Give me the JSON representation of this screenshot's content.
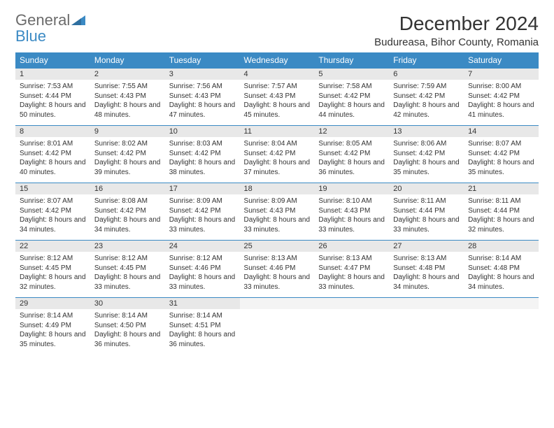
{
  "logo": {
    "word1": "General",
    "word2": "Blue"
  },
  "title": "December 2024",
  "location": "Budureasa, Bihor County, Romania",
  "colors": {
    "header_bg": "#3b8ac4",
    "header_text": "#ffffff",
    "daynum_bg": "#e8e8e8",
    "daynum_border": "#3b8ac4",
    "text": "#333333",
    "logo_gray": "#6b6b6b",
    "logo_blue": "#3b8ac4"
  },
  "weekdays": [
    "Sunday",
    "Monday",
    "Tuesday",
    "Wednesday",
    "Thursday",
    "Friday",
    "Saturday"
  ],
  "weeks": [
    [
      {
        "num": "1",
        "sunrise": "7:53 AM",
        "sunset": "4:44 PM",
        "daylight": "8 hours and 50 minutes."
      },
      {
        "num": "2",
        "sunrise": "7:55 AM",
        "sunset": "4:43 PM",
        "daylight": "8 hours and 48 minutes."
      },
      {
        "num": "3",
        "sunrise": "7:56 AM",
        "sunset": "4:43 PM",
        "daylight": "8 hours and 47 minutes."
      },
      {
        "num": "4",
        "sunrise": "7:57 AM",
        "sunset": "4:43 PM",
        "daylight": "8 hours and 45 minutes."
      },
      {
        "num": "5",
        "sunrise": "7:58 AM",
        "sunset": "4:42 PM",
        "daylight": "8 hours and 44 minutes."
      },
      {
        "num": "6",
        "sunrise": "7:59 AM",
        "sunset": "4:42 PM",
        "daylight": "8 hours and 42 minutes."
      },
      {
        "num": "7",
        "sunrise": "8:00 AM",
        "sunset": "4:42 PM",
        "daylight": "8 hours and 41 minutes."
      }
    ],
    [
      {
        "num": "8",
        "sunrise": "8:01 AM",
        "sunset": "4:42 PM",
        "daylight": "8 hours and 40 minutes."
      },
      {
        "num": "9",
        "sunrise": "8:02 AM",
        "sunset": "4:42 PM",
        "daylight": "8 hours and 39 minutes."
      },
      {
        "num": "10",
        "sunrise": "8:03 AM",
        "sunset": "4:42 PM",
        "daylight": "8 hours and 38 minutes."
      },
      {
        "num": "11",
        "sunrise": "8:04 AM",
        "sunset": "4:42 PM",
        "daylight": "8 hours and 37 minutes."
      },
      {
        "num": "12",
        "sunrise": "8:05 AM",
        "sunset": "4:42 PM",
        "daylight": "8 hours and 36 minutes."
      },
      {
        "num": "13",
        "sunrise": "8:06 AM",
        "sunset": "4:42 PM",
        "daylight": "8 hours and 35 minutes."
      },
      {
        "num": "14",
        "sunrise": "8:07 AM",
        "sunset": "4:42 PM",
        "daylight": "8 hours and 35 minutes."
      }
    ],
    [
      {
        "num": "15",
        "sunrise": "8:07 AM",
        "sunset": "4:42 PM",
        "daylight": "8 hours and 34 minutes."
      },
      {
        "num": "16",
        "sunrise": "8:08 AM",
        "sunset": "4:42 PM",
        "daylight": "8 hours and 34 minutes."
      },
      {
        "num": "17",
        "sunrise": "8:09 AM",
        "sunset": "4:42 PM",
        "daylight": "8 hours and 33 minutes."
      },
      {
        "num": "18",
        "sunrise": "8:09 AM",
        "sunset": "4:43 PM",
        "daylight": "8 hours and 33 minutes."
      },
      {
        "num": "19",
        "sunrise": "8:10 AM",
        "sunset": "4:43 PM",
        "daylight": "8 hours and 33 minutes."
      },
      {
        "num": "20",
        "sunrise": "8:11 AM",
        "sunset": "4:44 PM",
        "daylight": "8 hours and 33 minutes."
      },
      {
        "num": "21",
        "sunrise": "8:11 AM",
        "sunset": "4:44 PM",
        "daylight": "8 hours and 32 minutes."
      }
    ],
    [
      {
        "num": "22",
        "sunrise": "8:12 AM",
        "sunset": "4:45 PM",
        "daylight": "8 hours and 32 minutes."
      },
      {
        "num": "23",
        "sunrise": "8:12 AM",
        "sunset": "4:45 PM",
        "daylight": "8 hours and 33 minutes."
      },
      {
        "num": "24",
        "sunrise": "8:12 AM",
        "sunset": "4:46 PM",
        "daylight": "8 hours and 33 minutes."
      },
      {
        "num": "25",
        "sunrise": "8:13 AM",
        "sunset": "4:46 PM",
        "daylight": "8 hours and 33 minutes."
      },
      {
        "num": "26",
        "sunrise": "8:13 AM",
        "sunset": "4:47 PM",
        "daylight": "8 hours and 33 minutes."
      },
      {
        "num": "27",
        "sunrise": "8:13 AM",
        "sunset": "4:48 PM",
        "daylight": "8 hours and 34 minutes."
      },
      {
        "num": "28",
        "sunrise": "8:14 AM",
        "sunset": "4:48 PM",
        "daylight": "8 hours and 34 minutes."
      }
    ],
    [
      {
        "num": "29",
        "sunrise": "8:14 AM",
        "sunset": "4:49 PM",
        "daylight": "8 hours and 35 minutes."
      },
      {
        "num": "30",
        "sunrise": "8:14 AM",
        "sunset": "4:50 PM",
        "daylight": "8 hours and 36 minutes."
      },
      {
        "num": "31",
        "sunrise": "8:14 AM",
        "sunset": "4:51 PM",
        "daylight": "8 hours and 36 minutes."
      },
      {
        "num": "",
        "empty": true
      },
      {
        "num": "",
        "empty": true
      },
      {
        "num": "",
        "empty": true
      },
      {
        "num": "",
        "empty": true
      }
    ]
  ],
  "labels": {
    "sunrise": "Sunrise:",
    "sunset": "Sunset:",
    "daylight": "Daylight:"
  }
}
